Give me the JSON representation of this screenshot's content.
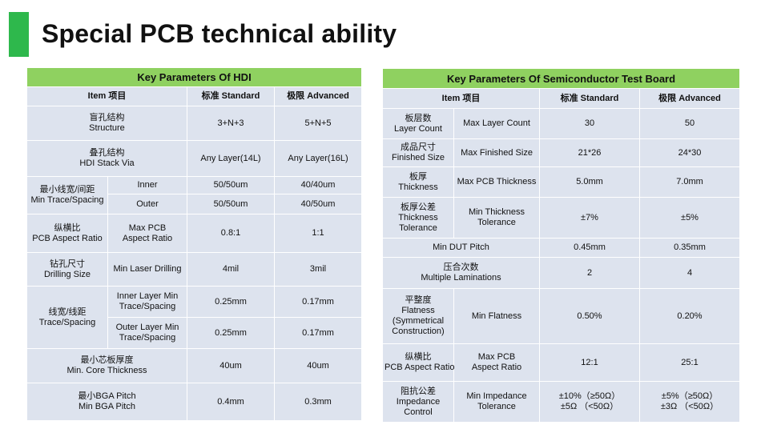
{
  "title": "Special PCB technical ability",
  "hdi": {
    "header": "Key Parameters Of HDI",
    "columns": [
      "Item 项目",
      "标准 Standard",
      "极限 Advanced"
    ],
    "rows": {
      "structure": {
        "cn": "盲孔结构",
        "en": "Structure",
        "std": "3+N+3",
        "adv": "5+N+5"
      },
      "stack_via": {
        "cn": "叠孔结构",
        "en": "HDI Stack Via",
        "std": "Any Layer(14L)",
        "adv": "Any Layer(16L)"
      },
      "trace": {
        "cn": "最小线宽/间距",
        "en": "Min Trace/Spacing",
        "inner": {
          "sub": "Inner",
          "std": "50/50um",
          "adv": "40/40um"
        },
        "outer": {
          "sub": "Outer",
          "std": "50/50um",
          "adv": "40/50um"
        }
      },
      "aspect": {
        "cn": "纵横比",
        "en": "PCB Aspect Ratio",
        "sub1": "Max PCB",
        "sub2": "Aspect Ratio",
        "std": "0.8:1",
        "adv": "1:1"
      },
      "drill": {
        "cn": "钻孔尺寸",
        "en": "Drilling Size",
        "sub": "Min Laser Drilling",
        "std": "4mil",
        "adv": "3mil"
      },
      "spacing": {
        "cn": "线宽/线距",
        "en": "Trace/Spacing",
        "inner": {
          "sub1": "Inner Layer Min",
          "sub2": "Trace/Spacing",
          "std": "0.25mm",
          "adv": "0.17mm"
        },
        "outer": {
          "sub1": "Outer Layer Min",
          "sub2": "Trace/Spacing",
          "std": "0.25mm",
          "adv": "0.17mm"
        }
      },
      "core": {
        "cn": "最小芯板厚度",
        "en": "Min. Core Thickness",
        "std": "40um",
        "adv": "40um"
      },
      "bga": {
        "cn": "最小BGA Pitch",
        "en": "Min BGA Pitch",
        "std": "0.4mm",
        "adv": "0.3mm"
      }
    }
  },
  "semi": {
    "header": "Key Parameters Of Semiconductor Test Board",
    "columns": [
      "Item 项目",
      "标准 Standard",
      "极限 Advanced"
    ],
    "rows": {
      "layer": {
        "cn": "板层数",
        "en": "Layer Count",
        "sub": "Max Layer Count",
        "std": "30",
        "adv": "50"
      },
      "size": {
        "cn": "成品尺寸",
        "en": "Finished Size",
        "sub": "Max Finished Size",
        "std": "21*26",
        "adv": "24*30"
      },
      "thick": {
        "cn": "板厚",
        "en": "Thickness",
        "sub": "Max PCB Thickness",
        "std": "5.0mm",
        "adv": "7.0mm"
      },
      "tol": {
        "cn": "板厚公差",
        "en1": "Thickness",
        "en2": "Tolerance",
        "sub1": "Min Thickness",
        "sub2": "Tolerance",
        "std": "±7%",
        "adv": "±5%"
      },
      "dut": {
        "label": "Min DUT Pitch",
        "std": "0.45mm",
        "adv": "0.35mm"
      },
      "lam": {
        "cn": "压合次数",
        "en": "Multiple Laminations",
        "std": "2",
        "adv": "4"
      },
      "flat": {
        "cn": "平整度",
        "en1": "Flatness",
        "en2": "(Symmetrical",
        "en3": "Construction)",
        "sub": "Min Flatness",
        "std": "0.50%",
        "adv": "0.20%"
      },
      "aspect": {
        "cn": "纵横比",
        "en": "PCB Aspect Ratio",
        "sub1": "Max PCB",
        "sub2": "Aspect Ratio",
        "std": "12:1",
        "adv": "25:1"
      },
      "imp": {
        "cn": "阻抗公差",
        "en1": "Impedance",
        "en2": "Control",
        "sub1": "Min Impedance",
        "sub2": "Tolerance",
        "std1": "±10%（≥50Ω）",
        "std2": "±5Ω （<50Ω）",
        "adv1": "±5%（≥50Ω）",
        "adv2": "±3Ω （<50Ω）"
      }
    }
  }
}
